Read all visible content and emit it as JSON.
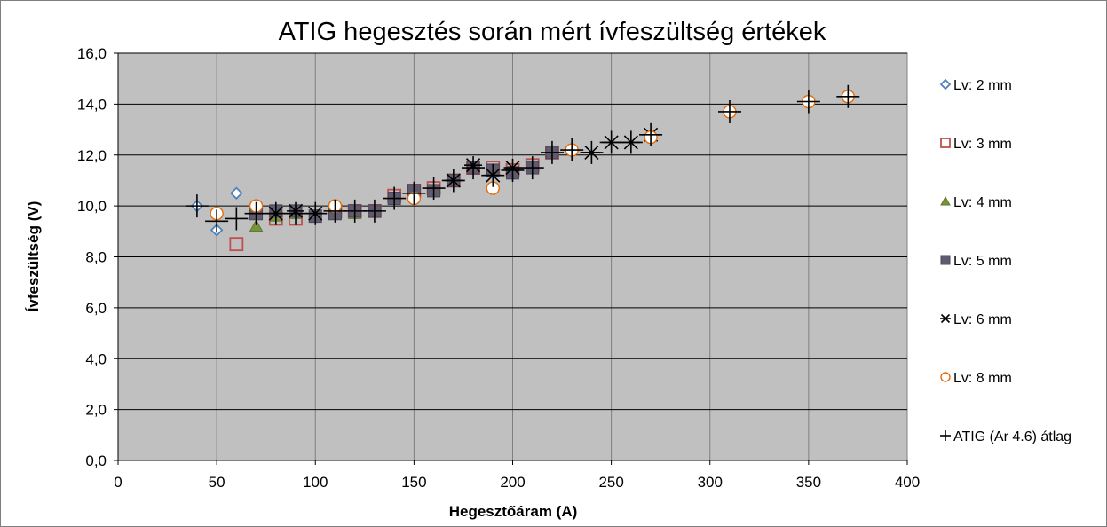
{
  "chart_data": {
    "type": "scatter",
    "title": "ATIG hegesztés során mért ívfeszültség értékek",
    "xlabel": "Hegesztőáram (A)",
    "ylabel": "Ívfeszültség (V)",
    "xlim": [
      0,
      400
    ],
    "ylim": [
      0,
      16
    ],
    "xticks": [
      "0",
      "50",
      "100",
      "150",
      "200",
      "250",
      "300",
      "350",
      "400"
    ],
    "yticks": [
      "0,0",
      "2,0",
      "4,0",
      "6,0",
      "8,0",
      "10,0",
      "12,0",
      "14,0",
      "16,0"
    ],
    "grid": "horizontal and vertical",
    "legend_position": "right",
    "plot_background": "#c0c0c0",
    "series": [
      {
        "name": "Lv: 2 mm",
        "marker": "diamond",
        "color": "#4f81bd",
        "points": [
          [
            40,
            10.0
          ],
          [
            50,
            9.05
          ],
          [
            60,
            10.5
          ]
        ]
      },
      {
        "name": "Lv: 3 mm",
        "marker": "square",
        "color": "#c0504d",
        "points": [
          [
            60,
            8.5
          ],
          [
            80,
            9.5
          ],
          [
            90,
            9.5
          ],
          [
            110,
            9.8
          ],
          [
            120,
            9.8
          ],
          [
            130,
            9.8
          ],
          [
            140,
            10.4
          ],
          [
            150,
            10.6
          ],
          [
            160,
            10.7
          ],
          [
            170,
            11.0
          ],
          [
            180,
            11.5
          ],
          [
            190,
            11.5
          ],
          [
            200,
            11.4
          ],
          [
            210,
            11.6
          ],
          [
            220,
            12.1
          ]
        ]
      },
      {
        "name": "Lv: 4 mm",
        "marker": "triangle",
        "color": "#77933c",
        "points": [
          [
            70,
            9.2
          ],
          [
            80,
            9.6
          ],
          [
            90,
            9.7
          ],
          [
            110,
            9.8
          ],
          [
            120,
            9.7
          ]
        ]
      },
      {
        "name": "Lv: 5 mm",
        "marker": "square",
        "color": "#5f5a6e",
        "points": [
          [
            70,
            9.7
          ],
          [
            80,
            9.8
          ],
          [
            90,
            9.8
          ],
          [
            100,
            9.6
          ],
          [
            110,
            9.7
          ],
          [
            120,
            9.8
          ],
          [
            130,
            9.8
          ],
          [
            140,
            10.3
          ],
          [
            150,
            10.6
          ],
          [
            160,
            10.6
          ],
          [
            170,
            11.0
          ],
          [
            180,
            11.5
          ],
          [
            190,
            11.4
          ],
          [
            200,
            11.3
          ],
          [
            210,
            11.5
          ],
          [
            220,
            12.1
          ]
        ]
      },
      {
        "name": "Lv: 6 mm",
        "marker": "asterisk",
        "color": "#000000",
        "points": [
          [
            80,
            9.7
          ],
          [
            90,
            9.8
          ],
          [
            100,
            9.7
          ],
          [
            170,
            11.0
          ],
          [
            180,
            11.6
          ],
          [
            190,
            11.2
          ],
          [
            200,
            11.5
          ],
          [
            240,
            12.1
          ],
          [
            250,
            12.5
          ],
          [
            260,
            12.5
          ],
          [
            270,
            12.8
          ]
        ]
      },
      {
        "name": "Lv: 8 mm",
        "marker": "circle",
        "color": "#e46c0a",
        "points": [
          [
            50,
            9.7
          ],
          [
            70,
            10.0
          ],
          [
            110,
            10.0
          ],
          [
            150,
            10.3
          ],
          [
            190,
            10.7
          ],
          [
            230,
            12.2
          ],
          [
            270,
            12.7
          ],
          [
            310,
            13.7
          ],
          [
            350,
            14.1
          ],
          [
            370,
            14.3
          ]
        ]
      },
      {
        "name": "ATIG (Ar 4.6) átlag",
        "marker": "plus",
        "color": "#000000",
        "points": [
          [
            40,
            10.0
          ],
          [
            50,
            9.4
          ],
          [
            60,
            9.5
          ],
          [
            70,
            9.7
          ],
          [
            80,
            9.7
          ],
          [
            90,
            9.7
          ],
          [
            100,
            9.7
          ],
          [
            110,
            9.8
          ],
          [
            120,
            9.8
          ],
          [
            130,
            9.8
          ],
          [
            140,
            10.3
          ],
          [
            150,
            10.5
          ],
          [
            160,
            10.7
          ],
          [
            170,
            11.0
          ],
          [
            180,
            11.5
          ],
          [
            190,
            11.2
          ],
          [
            200,
            11.4
          ],
          [
            210,
            11.5
          ],
          [
            220,
            12.1
          ],
          [
            230,
            12.2
          ],
          [
            240,
            12.1
          ],
          [
            250,
            12.5
          ],
          [
            260,
            12.5
          ],
          [
            270,
            12.8
          ],
          [
            310,
            13.7
          ],
          [
            350,
            14.1
          ],
          [
            370,
            14.3
          ]
        ]
      }
    ]
  }
}
